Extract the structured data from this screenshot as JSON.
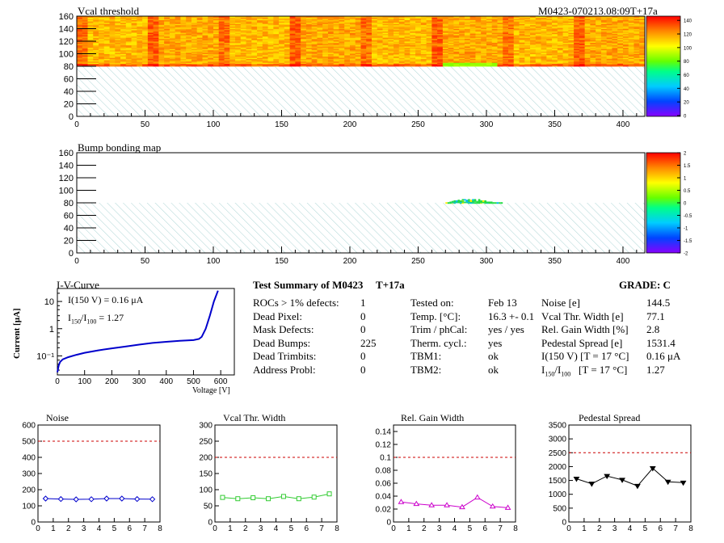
{
  "header": {
    "module_id": "M0423-070213.08:09T+17a"
  },
  "chart_data": [
    {
      "type": "heatmap",
      "title": "Vcal threshold",
      "xlim": [
        0,
        416
      ],
      "ylim": [
        0,
        160
      ],
      "x_ticks": [
        "0",
        "50",
        "100",
        "150",
        "200",
        "250",
        "300",
        "350",
        "400"
      ],
      "y_ticks": [
        "0",
        "20",
        "40",
        "60",
        "80",
        "100",
        "120",
        "140",
        "160"
      ],
      "z_ticks": [
        "0",
        "20",
        "40",
        "60",
        "80",
        "100",
        "120",
        "140"
      ],
      "data_rows": [
        80,
        160
      ],
      "typical_value": 110,
      "low_region": {
        "x": [
          268,
          308
        ],
        "y": [
          80,
          84
        ],
        "value": 80
      }
    },
    {
      "type": "heatmap",
      "title": "Bump bonding map",
      "xlim": [
        0,
        416
      ],
      "ylim": [
        0,
        160
      ],
      "x_ticks": [
        "0",
        "50",
        "100",
        "150",
        "200",
        "250",
        "300",
        "350",
        "400"
      ],
      "y_ticks": [
        "0",
        "20",
        "40",
        "60",
        "80",
        "100",
        "120",
        "140",
        "160"
      ],
      "z_ticks": [
        "-2",
        "-1.5",
        "-1",
        "-0.5",
        "0",
        "0.5",
        "1",
        "1.5",
        "2"
      ],
      "defect_region": {
        "x": [
          270,
          312
        ],
        "y": [
          80,
          86
        ]
      }
    },
    {
      "type": "line",
      "title": "I-V-Curve",
      "xlabel": "Voltage [V]",
      "ylabel": "Current [μA]",
      "yscale": "log",
      "xlim": [
        0,
        650
      ],
      "ylim": [
        0.02,
        30
      ],
      "x_ticks": [
        "0",
        "100",
        "200",
        "300",
        "400",
        "500",
        "600"
      ],
      "y_ticks": [
        "10⁻¹",
        "1",
        "10"
      ],
      "annotations": [
        "I(150 V) = 0.16 μA",
        "1.27"
      ],
      "x": [
        0,
        5,
        10,
        20,
        40,
        70,
        100,
        150,
        200,
        250,
        300,
        350,
        400,
        450,
        500,
        520,
        530,
        545,
        560,
        575,
        590
      ],
      "y": [
        0.025,
        0.045,
        0.06,
        0.075,
        0.09,
        0.11,
        0.13,
        0.16,
        0.19,
        0.22,
        0.26,
        0.3,
        0.33,
        0.36,
        0.38,
        0.42,
        0.5,
        1.0,
        3.0,
        10,
        25
      ]
    },
    {
      "type": "line",
      "title": "Noise",
      "xlim": [
        0,
        8
      ],
      "ylim": [
        0,
        600
      ],
      "x_ticks": [
        "0",
        "1",
        "2",
        "3",
        "4",
        "5",
        "6",
        "7",
        "8"
      ],
      "y_ticks": [
        "0",
        "100",
        "200",
        "300",
        "400",
        "500",
        "600"
      ],
      "threshold": 500,
      "x": [
        0.5,
        1.5,
        2.5,
        3.5,
        4.5,
        5.5,
        6.5,
        7.5
      ],
      "y": [
        145,
        142,
        140,
        141,
        145,
        145,
        142,
        141
      ]
    },
    {
      "type": "line",
      "title": "Vcal Thr. Width",
      "xlim": [
        0,
        8
      ],
      "ylim": [
        0,
        300
      ],
      "x_ticks": [
        "0",
        "1",
        "2",
        "3",
        "4",
        "5",
        "6",
        "7",
        "8"
      ],
      "y_ticks": [
        "0",
        "50",
        "100",
        "150",
        "200",
        "250",
        "300"
      ],
      "threshold": 200,
      "x": [
        0.5,
        1.5,
        2.5,
        3.5,
        4.5,
        5.5,
        6.5,
        7.5
      ],
      "y": [
        76,
        72,
        75,
        72,
        79,
        72,
        77,
        87
      ]
    },
    {
      "type": "line",
      "title": "Rel. Gain Width",
      "xlim": [
        0,
        8
      ],
      "ylim": [
        0,
        0.15
      ],
      "x_ticks": [
        "0",
        "1",
        "2",
        "3",
        "4",
        "5",
        "6",
        "7",
        "8"
      ],
      "y_ticks": [
        "0",
        "0.02",
        "0.04",
        "0.06",
        "0.08",
        "0.1",
        "0.12",
        "0.14"
      ],
      "threshold": 0.1,
      "x": [
        0.5,
        1.5,
        2.5,
        3.5,
        4.5,
        5.5,
        6.5,
        7.5
      ],
      "y": [
        0.031,
        0.028,
        0.026,
        0.026,
        0.023,
        0.038,
        0.024,
        0.022
      ]
    },
    {
      "type": "line",
      "title": "Pedestal Spread",
      "xlim": [
        0,
        8
      ],
      "ylim": [
        0,
        3500
      ],
      "x_ticks": [
        "0",
        "1",
        "2",
        "3",
        "4",
        "5",
        "6",
        "7",
        "8"
      ],
      "y_ticks": [
        "0",
        "500",
        "1000",
        "1500",
        "2000",
        "2500",
        "3000",
        "3500"
      ],
      "threshold": 2500,
      "x": [
        0.5,
        1.5,
        2.5,
        3.5,
        4.5,
        5.5,
        6.5,
        7.5
      ],
      "y": [
        1560,
        1380,
        1660,
        1520,
        1300,
        1940,
        1450,
        1420
      ]
    }
  ],
  "summary": {
    "title": "Test Summary of M0423",
    "tag": "T+17a",
    "grade": "GRADE:  C",
    "col1": [
      {
        "label": "ROCs > 1% defects:",
        "value": "1"
      },
      {
        "label": "Dead Pixel:",
        "value": "0"
      },
      {
        "label": "Mask Defects:",
        "value": "0"
      },
      {
        "label": "Dead Bumps:",
        "value": "225"
      },
      {
        "label": "Dead Trimbits:",
        "value": "0"
      },
      {
        "label": "Address Probl:",
        "value": "0"
      }
    ],
    "col2": [
      {
        "label": "Tested on:",
        "value": "Feb 13"
      },
      {
        "label": "Temp. [°C]:",
        "value": "16.3 +- 0.1"
      },
      {
        "label": "Trim / phCal:",
        "value": "yes / yes"
      },
      {
        "label": "Therm. cycl.:",
        "value": "yes"
      },
      {
        "label": "TBM1:",
        "value": "ok"
      },
      {
        "label": "TBM2:",
        "value": "ok"
      }
    ],
    "col3": [
      {
        "label": "Noise [e]",
        "value": "144.5"
      },
      {
        "label": "Vcal Thr. Width [e]",
        "value": "77.1"
      },
      {
        "label": "Rel. Gain Width [%]",
        "value": "2.8"
      },
      {
        "label": "Pedestal Spread [e]",
        "value": "1531.4"
      },
      {
        "label": "I(150 V) [T = 17 °C]",
        "value": "0.16 μA"
      },
      {
        "label": "[T = 17 °C]",
        "value": "1.27"
      }
    ]
  },
  "colors": {
    "marker_noise": "#0000cc",
    "marker_vcal": "#33cc33",
    "marker_gain": "#cc00cc",
    "marker_ped": "#000000",
    "threshold": "#cc0000",
    "iv_line": "#0000cc"
  }
}
